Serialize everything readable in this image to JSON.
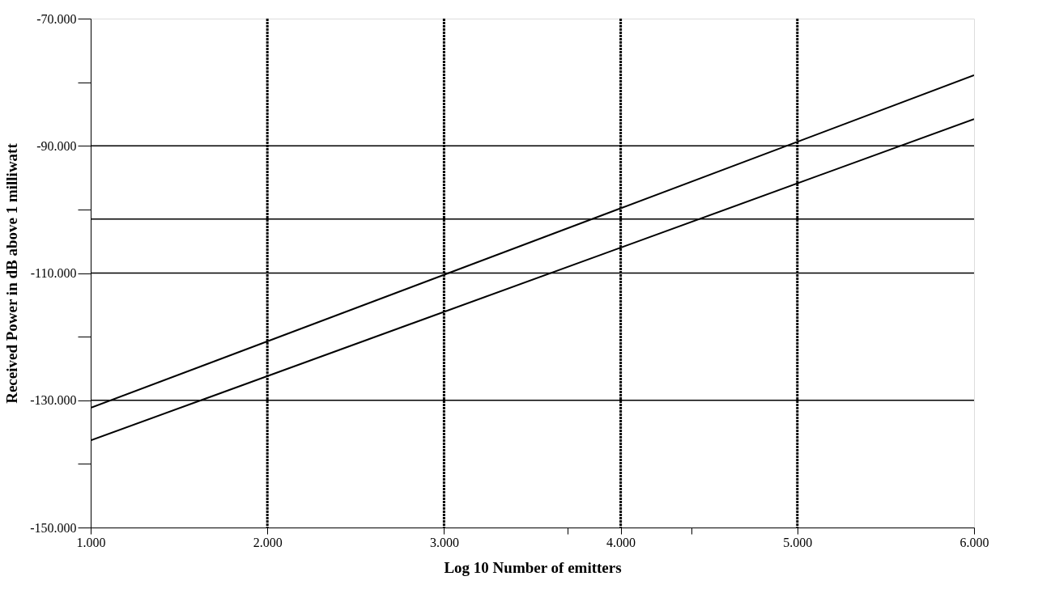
{
  "chart_data": {
    "type": "line",
    "xlabel": "Log 10 Number of emitters",
    "ylabel": "Received Power in dB  above  1 milliwatt",
    "series": [
      {
        "color": "#000000",
        "values": [
          -131.2,
          -78.9
        ]
      },
      {
        "color": "#000000",
        "values": [
          -136.3,
          -85.8
        ]
      }
    ],
    "x": [
      1,
      6
    ],
    "xlim": [
      1,
      6
    ],
    "xticks": [
      {
        "value": 1,
        "label": "1.000"
      },
      {
        "value": 2,
        "label": "2.000"
      },
      {
        "value": 3,
        "label": "3.000"
      },
      {
        "value": 3.7,
        "label": null
      },
      {
        "value": 4,
        "label": "4.000"
      },
      {
        "value": 4.4,
        "label": null
      },
      {
        "value": 5,
        "label": "5.000"
      },
      {
        "value": 6,
        "label": "6.000"
      }
    ],
    "ylim": [
      -150,
      -70
    ],
    "yticks": [
      {
        "value": -150,
        "label": "-150.000"
      },
      {
        "value": -140,
        "label": null
      },
      {
        "value": -130,
        "label": "-130.000"
      },
      {
        "value": -120,
        "label": null
      },
      {
        "value": -110,
        "label": "-110.000"
      },
      {
        "value": -100,
        "label": null
      },
      {
        "value": -90,
        "label": "-90.000"
      },
      {
        "value": -80,
        "label": null
      },
      {
        "value": -70,
        "label": "-70.000"
      }
    ],
    "ref_lines": [
      {
        "axis": "y",
        "value": -101.5,
        "color": "#000000",
        "line_style": "solid"
      }
    ],
    "grid": true,
    "marker": "none",
    "line_style": "solid"
  }
}
